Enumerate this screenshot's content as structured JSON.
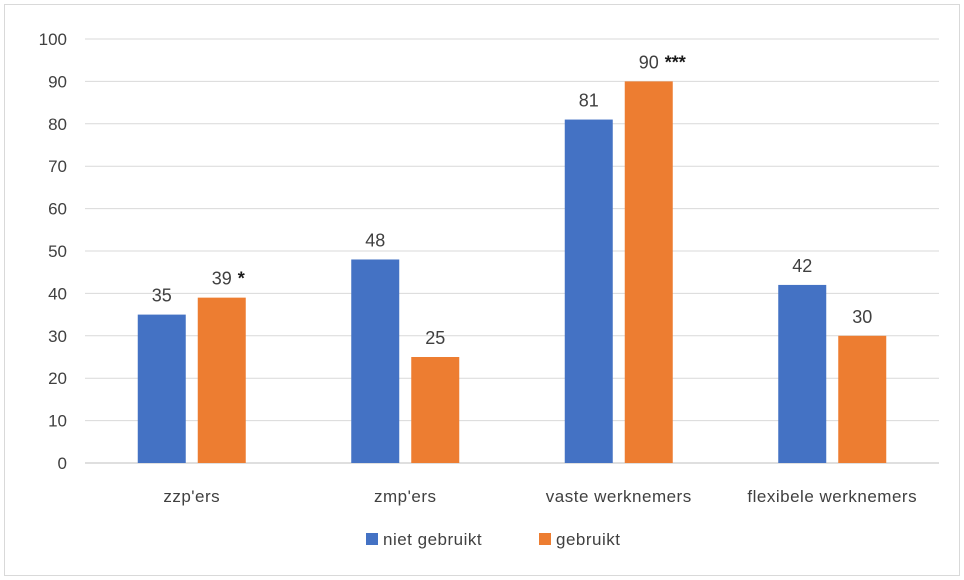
{
  "chart_data": {
    "type": "bar",
    "categories": [
      "zzp'ers",
      "zmp'ers",
      "vaste werknemers",
      "flexibele werknemers"
    ],
    "series": [
      {
        "name": "niet gebruikt",
        "color": "#4472c4",
        "values": [
          35,
          48,
          81,
          42
        ],
        "labels": [
          "35",
          "48",
          "81",
          "42"
        ],
        "significance": [
          "",
          "",
          "",
          ""
        ]
      },
      {
        "name": "gebruikt",
        "color": "#ed7d31",
        "values": [
          39,
          25,
          90,
          30
        ],
        "labels": [
          "39",
          "25",
          "90",
          "30"
        ],
        "significance": [
          "*",
          "",
          "***",
          ""
        ]
      }
    ],
    "ylim": [
      0,
      100
    ],
    "yticks": [
      "0",
      "10",
      "20",
      "30",
      "40",
      "50",
      "60",
      "70",
      "80",
      "90",
      "100"
    ],
    "grid": true,
    "legend_position": "bottom"
  }
}
